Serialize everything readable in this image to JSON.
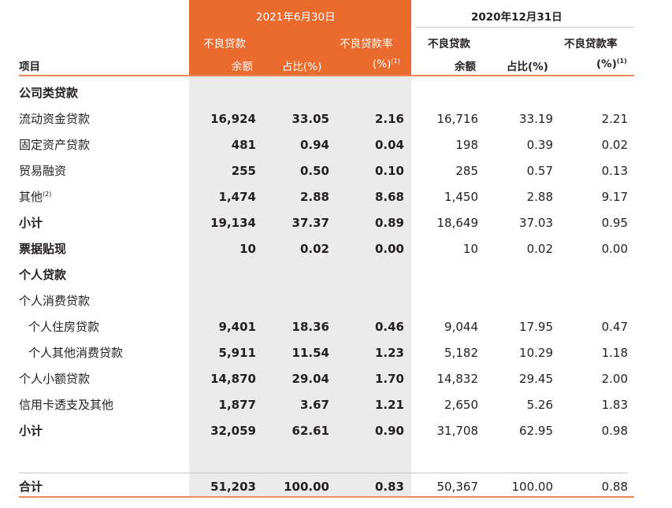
{
  "header": {
    "period_current": "2021年6月30日",
    "period_prior": "2020年12月31日",
    "npl": "不良贷款",
    "npl_ratio": "不良贷款率",
    "balance": "余额",
    "share": "占比(%)",
    "pct": "(%)",
    "note1": "(1)",
    "item": "项目"
  },
  "rows": [
    {
      "label": "公司类贷款",
      "kind": "sect",
      "v": [
        "",
        "",
        "",
        "",
        "",
        ""
      ]
    },
    {
      "label": "流动资金贷款",
      "kind": "item",
      "v": [
        "16,924",
        "33.05",
        "2.16",
        "16,716",
        "33.19",
        "2.21"
      ]
    },
    {
      "label": "固定资产贷款",
      "kind": "item",
      "v": [
        "481",
        "0.94",
        "0.04",
        "198",
        "0.39",
        "0.02"
      ]
    },
    {
      "label": "贸易融资",
      "kind": "item",
      "v": [
        "255",
        "0.50",
        "0.10",
        "285",
        "0.57",
        "0.13"
      ]
    },
    {
      "label": "其他",
      "note": "(2)",
      "kind": "item",
      "v": [
        "1,474",
        "2.88",
        "8.68",
        "1,450",
        "2.88",
        "9.17"
      ]
    },
    {
      "label": "小计",
      "kind": "bold",
      "v": [
        "19,134",
        "37.37",
        "0.89",
        "18,649",
        "37.03",
        "0.95"
      ]
    },
    {
      "label": "票据贴现",
      "kind": "bold",
      "v": [
        "10",
        "0.02",
        "0.00",
        "10",
        "0.02",
        "0.00"
      ]
    },
    {
      "label": "个人贷款",
      "kind": "sect",
      "v": [
        "",
        "",
        "",
        "",
        "",
        ""
      ]
    },
    {
      "label": "个人消费贷款",
      "kind": "item",
      "v": [
        "",
        "",
        "",
        "",
        "",
        ""
      ]
    },
    {
      "label": "个人住房贷款",
      "kind": "indent",
      "v": [
        "9,401",
        "18.36",
        "0.46",
        "9,044",
        "17.95",
        "0.47"
      ]
    },
    {
      "label": "个人其他消费贷款",
      "kind": "indent",
      "v": [
        "5,911",
        "11.54",
        "1.23",
        "5,182",
        "10.29",
        "1.18"
      ]
    },
    {
      "label": "个人小额贷款",
      "kind": "item",
      "v": [
        "14,870",
        "29.04",
        "1.70",
        "14,832",
        "29.45",
        "2.00"
      ]
    },
    {
      "label": "信用卡透支及其他",
      "kind": "item",
      "v": [
        "1,877",
        "3.67",
        "1.21",
        "2,650",
        "5.26",
        "1.83"
      ]
    },
    {
      "label": "小计",
      "kind": "bold",
      "v": [
        "32,059",
        "62.61",
        "0.90",
        "31,708",
        "62.95",
        "0.98"
      ]
    },
    {
      "label": "合计",
      "kind": "total",
      "v": [
        "51,203",
        "100.00",
        "0.83",
        "50,367",
        "100.00",
        "0.88"
      ]
    }
  ]
}
